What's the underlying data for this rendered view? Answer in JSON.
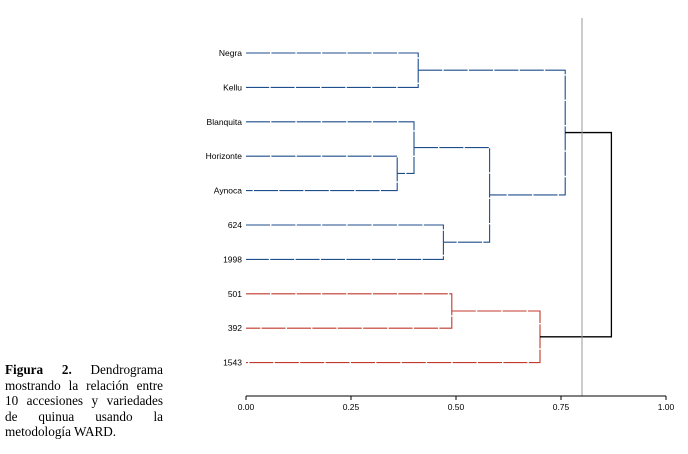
{
  "caption": {
    "label": "Figura 2.",
    "text": "Dendrograma mostrando la relación entre 10 accesiones y variedades de quinua usando la metodología WARD."
  },
  "chart_data": {
    "type": "dendrogram",
    "title": "",
    "xlabel": "",
    "ylabel": "",
    "xlim": [
      0,
      1
    ],
    "xticks": [
      0,
      0.25,
      0.5,
      0.75,
      1
    ],
    "xtick_labels": [
      "0.00",
      "0.25",
      "0.50",
      "0.75",
      "1.00"
    ],
    "cut_line": 0.8,
    "leaves": [
      "Negra",
      "Kellu",
      "Blanquita",
      "Horizonte",
      "Aynoca",
      "624",
      "1998",
      "501",
      "392",
      "1543"
    ],
    "merges": [
      {
        "id": "m1",
        "left": "Horizonte",
        "right": "Aynoca",
        "height": 0.36,
        "cluster": "blue"
      },
      {
        "id": "m2",
        "left": "Blanquita",
        "right": "m1",
        "height": 0.4,
        "cluster": "blue"
      },
      {
        "id": "m3",
        "left": "Negra",
        "right": "Kellu",
        "height": 0.41,
        "cluster": "blue"
      },
      {
        "id": "m4",
        "left": "624",
        "right": "1998",
        "height": 0.47,
        "cluster": "blue"
      },
      {
        "id": "m5",
        "left": "501",
        "right": "392",
        "height": 0.49,
        "cluster": "red"
      },
      {
        "id": "m6",
        "left": "m2",
        "right": "m4",
        "height": 0.58,
        "cluster": "blue"
      },
      {
        "id": "m7",
        "left": "m5",
        "right": "1543",
        "height": 0.7,
        "cluster": "red"
      },
      {
        "id": "m8",
        "left": "m3",
        "right": "m6",
        "height": 0.76,
        "cluster": "blue"
      },
      {
        "id": "m9",
        "left": "m8",
        "right": "m7",
        "height": 0.87,
        "cluster": "root"
      }
    ],
    "colors": {
      "blue": "#1f4e8c",
      "red": "#c0392b",
      "root": "#000000",
      "cut": "#999999",
      "axis": "#000000"
    }
  }
}
